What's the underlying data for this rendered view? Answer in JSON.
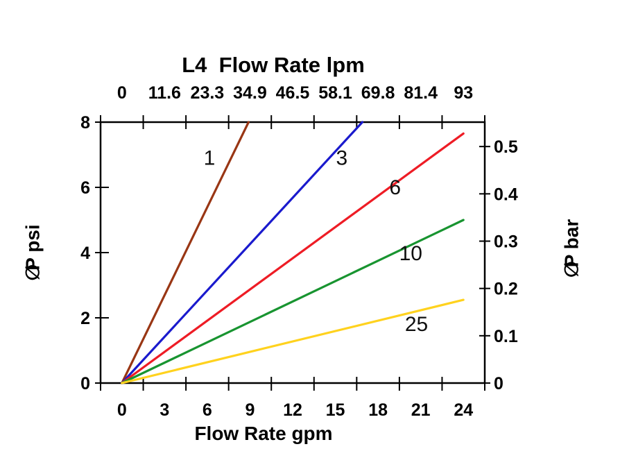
{
  "page": {
    "background": "#ffffff"
  },
  "chart_data": {
    "type": "line",
    "title": "L4  Flow Rate lpm",
    "top_axis": {
      "tick_labels": [
        "0",
        "11.6",
        "23.3",
        "34.9",
        "46.5",
        "58.1",
        "69.8",
        "81.4",
        "93"
      ]
    },
    "bottom_axis": {
      "label": "Flow Rate gpm",
      "tick_labels": [
        "0",
        "3",
        "6",
        "9",
        "12",
        "15",
        "18",
        "21",
        "24"
      ]
    },
    "left_axis": {
      "symbol": "∅",
      "label_rest": "P psi",
      "tick_values": [
        0,
        2,
        4,
        6,
        8
      ],
      "range": [
        0,
        8
      ]
    },
    "right_axis": {
      "symbol": "∅",
      "label_rest": "P bar",
      "tick_values": [
        0,
        0.1,
        0.2,
        0.3,
        0.4,
        0.5
      ],
      "psi_per_bar": 14.5038
    },
    "x_range_gpm": [
      -1.5,
      25.5
    ],
    "grid": false,
    "legend": "inline-line-labels",
    "axis_color": "#000000",
    "series": [
      {
        "name": "1",
        "color": "#993614",
        "points_gpm_psi": [
          [
            0,
            0
          ],
          [
            8.9,
            8
          ]
        ],
        "label_at_gpm_psi": [
          6.15,
          6.9
        ]
      },
      {
        "name": "3",
        "color": "#1a1acd",
        "points_gpm_psi": [
          [
            0,
            0
          ],
          [
            16.9,
            8
          ]
        ],
        "label_at_gpm_psi": [
          15.45,
          6.9
        ]
      },
      {
        "name": "6",
        "color": "#ee1c25",
        "points_gpm_psi": [
          [
            0,
            0
          ],
          [
            24,
            7.65
          ]
        ],
        "label_at_gpm_psi": [
          19.2,
          6.0
        ]
      },
      {
        "name": "10",
        "color": "#189430",
        "points_gpm_psi": [
          [
            0,
            0
          ],
          [
            24,
            5.0
          ]
        ],
        "label_at_gpm_psi": [
          20.3,
          3.98
        ]
      },
      {
        "name": "25",
        "color": "#ffd21e",
        "points_gpm_psi": [
          [
            0,
            0
          ],
          [
            24,
            2.55
          ]
        ],
        "label_at_gpm_psi": [
          20.7,
          1.81
        ]
      }
    ]
  }
}
